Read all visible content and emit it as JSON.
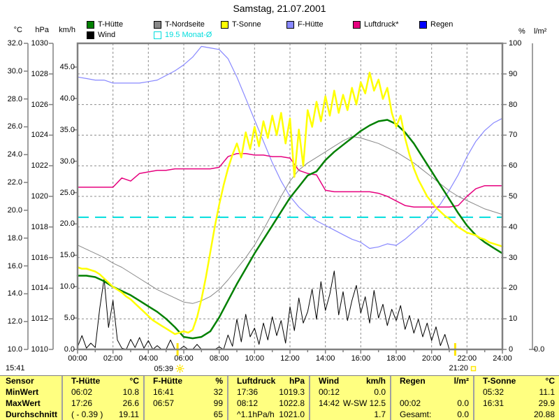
{
  "title": "Samstag, 21.07.2001",
  "legend": {
    "items": [
      {
        "id": "t-huette",
        "label": "T-Hütte",
        "color": "#008000",
        "row": 1,
        "col": 0
      },
      {
        "id": "t-nordseite",
        "label": "T-Nordseite",
        "color": "#888888",
        "row": 1,
        "col": 1
      },
      {
        "id": "t-sonne",
        "label": "T-Sonne",
        "color": "#ffff00",
        "row": 1,
        "col": 2
      },
      {
        "id": "f-huette",
        "label": "F-Hütte",
        "color": "#8888ff",
        "row": 1,
        "col": 3
      },
      {
        "id": "luftdruck",
        "label": "Luftdruck*",
        "color": "#e6007e",
        "row": 1,
        "col": 4
      },
      {
        "id": "regen",
        "label": "Regen",
        "color": "#0000ff",
        "row": 1,
        "col": 5
      },
      {
        "id": "wind",
        "label": "Wind",
        "color": "#000000",
        "row": 2,
        "col": 0
      },
      {
        "id": "monat-avg",
        "label": "19.5 Monat-Ø",
        "color": "#00dddd",
        "row": 2,
        "col": 1,
        "outline": true,
        "text_color": "#00dddd"
      }
    ]
  },
  "axes": {
    "celsius": {
      "unit": "°C",
      "min": 10,
      "max": 32,
      "ticks": [
        "32.0",
        "30.0",
        "28.0",
        "26.0",
        "24.0",
        "22.0",
        "20.0",
        "18.0",
        "16.0",
        "14.0",
        "12.0",
        "10.0"
      ]
    },
    "hpa": {
      "unit": "hPa",
      "min": 1010,
      "max": 1030,
      "ticks": [
        "1030",
        "1028",
        "1026",
        "1024",
        "1022",
        "1020",
        "1018",
        "1016",
        "1014",
        "1012",
        "1010"
      ]
    },
    "kmh": {
      "unit": "km/h",
      "min": 0,
      "max": 45,
      "ticks": [
        "45.0",
        "40.0",
        "35.0",
        "30.0",
        "25.0",
        "20.0",
        "15.0",
        "10.0",
        "5.0",
        "0.0"
      ]
    },
    "percent": {
      "unit": "%",
      "min": 0,
      "max": 100,
      "ticks": [
        "100",
        "90",
        "80",
        "70",
        "60",
        "50",
        "40",
        "30",
        "20",
        "10",
        "0"
      ]
    },
    "lm2": {
      "unit": "l/m²",
      "bottom_tick": "0.0"
    },
    "x": {
      "ticks": [
        "00:00",
        "02:00",
        "04:00",
        "06:00",
        "08:00",
        "10:00",
        "12:00",
        "14:00",
        "16:00",
        "18:00",
        "20:00",
        "22:00",
        "24:00"
      ]
    }
  },
  "annotations": {
    "sunrise": {
      "time": "05:39",
      "hours": 5.65
    },
    "sunset": {
      "time": "21:20",
      "hours": 21.333
    },
    "clock_time": "15:41"
  },
  "chart_data": {
    "type": "line",
    "x_range_hours": [
      0,
      24
    ],
    "grid": true,
    "month_avg": {
      "label": "19.5 Monat-Ø",
      "value": 19.5,
      "color": "#00dddd"
    },
    "series": [
      {
        "id": "f-huette",
        "name": "F-Hütte",
        "axis": "percent",
        "color": "#8888ff",
        "width": 1.2,
        "step_hours": 0.5,
        "values": [
          89,
          88.5,
          88,
          88,
          87,
          87,
          87,
          87,
          87.5,
          88,
          89.5,
          91,
          93,
          95.5,
          99,
          98.5,
          98,
          95,
          89,
          82,
          75,
          68,
          61,
          55,
          50,
          46.5,
          44,
          42,
          40.5,
          39,
          37.5,
          36,
          35,
          33,
          33.5,
          34.5,
          34,
          36,
          38.5,
          41,
          44,
          47.5,
          52,
          57,
          63,
          68,
          71.5,
          74,
          75.5
        ]
      },
      {
        "id": "luftdruck",
        "name": "Luftdruck",
        "axis": "hpa",
        "color": "#e6007e",
        "width": 1.5,
        "step_hours": 0.5,
        "values": [
          1020.6,
          1020.6,
          1020.6,
          1020.6,
          1020.6,
          1021.2,
          1021.0,
          1021.5,
          1021.6,
          1021.7,
          1021.7,
          1021.8,
          1021.8,
          1021.8,
          1021.8,
          1021.8,
          1021.9,
          1022.6,
          1022.8,
          1022.8,
          1022.7,
          1022.7,
          1022.6,
          1022.6,
          1022.5,
          1021.7,
          1021.5,
          1021.4,
          1020.4,
          1020.3,
          1020.3,
          1020.3,
          1020.3,
          1020.3,
          1020.2,
          1020.0,
          1019.7,
          1019.4,
          1019.3,
          1019.3,
          1019.3,
          1019.3,
          1019.3,
          1019.4,
          1020.0,
          1020.5,
          1020.7,
          1020.7,
          1020.7
        ]
      },
      {
        "id": "wind",
        "name": "Wind",
        "axis": "kmh",
        "color": "#000000",
        "width": 1,
        "step_hours": 0.25,
        "values": [
          0.4,
          2.2,
          0.2,
          1.0,
          0.3,
          6.5,
          11.3,
          3.5,
          7.8,
          1.5,
          0.2,
          0.0,
          1.6,
          0.3,
          1.9,
          0.2,
          1.4,
          0.0,
          0.6,
          0.0,
          0.0,
          1.5,
          0.0,
          0.0,
          0.5,
          0.0,
          0.0,
          0.8,
          0.0,
          0.0,
          0.0,
          0.0,
          0.4,
          0.0,
          2.3,
          0.5,
          4.8,
          1.2,
          5.6,
          2.0,
          3.4,
          0.8,
          4.2,
          1.5,
          5.2,
          2.2,
          4.6,
          1.0,
          6.8,
          3.0,
          8.2,
          4.2,
          6.0,
          9.6,
          4.8,
          10.8,
          6.2,
          8.8,
          12.5,
          5.5,
          9.2,
          4.6,
          7.8,
          10.2,
          5.8,
          8.4,
          4.2,
          9.4,
          5.0,
          7.2,
          3.8,
          6.4,
          4.6,
          7.0,
          3.2,
          5.4,
          2.6,
          4.8,
          2.0,
          4.2,
          1.4,
          3.6,
          0.6,
          2.4,
          0.0,
          0.0,
          0.0,
          0.0,
          0.0,
          0.0,
          0.0,
          0.0,
          0.0,
          0.0,
          0.0,
          0.0,
          0.0
        ]
      },
      {
        "id": "t-nordseite",
        "name": "T-Nordseite",
        "axis": "celsius",
        "color": "#888888",
        "width": 1,
        "step_hours": 0.5,
        "values": [
          17.5,
          17.2,
          16.9,
          16.6,
          16.2,
          15.9,
          15.5,
          15.1,
          14.7,
          14.3,
          14.0,
          13.7,
          13.4,
          13.3,
          13.5,
          13.8,
          14.3,
          15.0,
          15.8,
          16.6,
          17.5,
          18.6,
          19.8,
          21.0,
          22.1,
          22.9,
          23.4,
          23.8,
          24.2,
          24.6,
          25.0,
          25.3,
          25.2,
          25.0,
          24.8,
          24.5,
          24.2,
          23.8,
          23.4,
          22.9,
          22.4,
          21.9,
          21.4,
          21.0,
          20.7,
          20.4,
          20.1,
          19.9,
          19.7
        ]
      },
      {
        "id": "t-huette",
        "name": "T-Hütte",
        "axis": "celsius",
        "color": "#008000",
        "width": 2.5,
        "step_hours": 0.5,
        "values": [
          15.3,
          15.3,
          15.2,
          14.9,
          14.5,
          14.2,
          13.9,
          13.5,
          13.1,
          12.7,
          12.2,
          11.6,
          10.9,
          10.8,
          10.9,
          11.3,
          12.3,
          13.5,
          14.7,
          15.8,
          16.9,
          17.9,
          18.9,
          19.9,
          20.9,
          21.7,
          22.5,
          22.8,
          23.6,
          24.2,
          24.7,
          25.2,
          25.7,
          26.1,
          26.4,
          26.5,
          26.2,
          25.6,
          24.8,
          23.8,
          22.8,
          21.8,
          20.8,
          19.8,
          18.9,
          18.2,
          17.7,
          17.3,
          16.9
        ]
      },
      {
        "id": "t-sonne",
        "name": "T-Sonne",
        "axis": "celsius",
        "color": "#ffff00",
        "width": 2.5,
        "step_hours": 0.25,
        "values": [
          15.9,
          15.8,
          15.8,
          15.7,
          15.6,
          15.4,
          15.1,
          14.8,
          14.5,
          14.3,
          14.1,
          13.8,
          13.6,
          13.3,
          13.0,
          12.7,
          12.4,
          12.1,
          11.9,
          11.7,
          11.5,
          11.3,
          11.1,
          11.2,
          11.3,
          11.2,
          11.4,
          12.3,
          13.6,
          15.2,
          17.0,
          18.8,
          20.4,
          21.8,
          23.0,
          24.0,
          24.8,
          23.8,
          25.6,
          24.4,
          26.0,
          24.6,
          26.4,
          25.2,
          26.8,
          25.4,
          27.0,
          24.8,
          26.6,
          22.4,
          25.8,
          23.2,
          27.2,
          26.0,
          27.8,
          26.4,
          28.2,
          26.8,
          28.6,
          27.0,
          28.3,
          27.2,
          28.8,
          27.6,
          29.2,
          28.4,
          29.9,
          28.6,
          29.4,
          28.0,
          28.8,
          27.0,
          26.0,
          26.8,
          25.2,
          24.0,
          23.0,
          22.2,
          21.6,
          21.0,
          20.6,
          20.2,
          19.9,
          19.6,
          19.4,
          19.1,
          18.8,
          18.6,
          18.4,
          18.3,
          18.2,
          18.0,
          17.9,
          17.7,
          17.6,
          17.5,
          17.4
        ]
      },
      {
        "id": "regen",
        "name": "Regen",
        "axis": "percent",
        "color": "#0000ff",
        "width": 1,
        "step_hours": 24,
        "visible": false,
        "values": [
          0,
          0
        ]
      }
    ]
  },
  "table": {
    "corner_label": "Sensor",
    "columns": [
      {
        "header": "T-Hütte",
        "unit": "°C"
      },
      {
        "header": "F-Hütte",
        "unit": "%"
      },
      {
        "header": "Luftdruck",
        "unit": "hPa"
      },
      {
        "header": "Wind",
        "unit": "km/h"
      },
      {
        "header": "Regen",
        "unit": "l/m²"
      },
      {
        "header": "T-Sonne",
        "unit": "°C"
      }
    ],
    "rows": [
      {
        "label": "MinWert",
        "cells": [
          [
            "06:02",
            "10.8"
          ],
          [
            "16:41",
            "32"
          ],
          [
            "17:36",
            "1019.3"
          ],
          [
            "00:12",
            "0.0"
          ],
          [
            "",
            ""
          ],
          [
            "05:32",
            "11.1"
          ]
        ]
      },
      {
        "label": "MaxWert",
        "cells": [
          [
            "17:26",
            "26.6"
          ],
          [
            "06:57",
            "99"
          ],
          [
            "08:12",
            "1022.8"
          ],
          [
            "14:42",
            "W-SW 12.5"
          ],
          [
            "00:02",
            "0.0"
          ],
          [
            "16:31",
            "29.9"
          ]
        ]
      },
      {
        "label": "Durchschnitt",
        "cells": [
          [
            "( - 0.39 )",
            "19.11"
          ],
          [
            "",
            "65"
          ],
          [
            "^1.1hPa/h",
            "1021.0"
          ],
          [
            "",
            "1.7"
          ],
          [
            "Gesamt:",
            "0.0"
          ],
          [
            "",
            "20.88"
          ]
        ]
      }
    ]
  }
}
